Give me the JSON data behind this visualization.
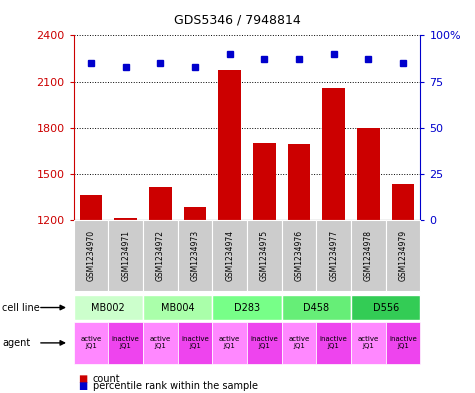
{
  "title": "GDS5346 / 7948814",
  "samples": [
    "GSM1234970",
    "GSM1234971",
    "GSM1234972",
    "GSM1234973",
    "GSM1234974",
    "GSM1234975",
    "GSM1234976",
    "GSM1234977",
    "GSM1234978",
    "GSM1234979"
  ],
  "bar_values": [
    1360,
    1215,
    1415,
    1285,
    2175,
    1700,
    1695,
    2060,
    1800,
    1435
  ],
  "dot_values_pct": [
    85,
    83,
    85,
    83,
    90,
    87,
    87,
    90,
    87,
    85
  ],
  "ylim_left": [
    1200,
    2400
  ],
  "ylim_right": [
    0,
    100
  ],
  "yticks_left": [
    1200,
    1500,
    1800,
    2100,
    2400
  ],
  "yticks_right": [
    0,
    25,
    50,
    75,
    100
  ],
  "bar_color": "#cc0000",
  "dot_color": "#0000cc",
  "cell_lines": [
    {
      "label": "MB002",
      "span": [
        0,
        2
      ],
      "color": "#ccffcc"
    },
    {
      "label": "MB004",
      "span": [
        2,
        4
      ],
      "color": "#aaffaa"
    },
    {
      "label": "D283",
      "span": [
        4,
        6
      ],
      "color": "#77ff88"
    },
    {
      "label": "D458",
      "span": [
        6,
        8
      ],
      "color": "#66ee77"
    },
    {
      "label": "D556",
      "span": [
        8,
        10
      ],
      "color": "#33cc55"
    }
  ],
  "agent_active_color": "#ff88ff",
  "agent_inactive_color": "#ee44ee",
  "legend_count_color": "#cc0000",
  "legend_dot_color": "#0000cc",
  "sample_box_color": "#cccccc",
  "fig_width": 4.75,
  "fig_height": 3.93,
  "dpi": 100
}
